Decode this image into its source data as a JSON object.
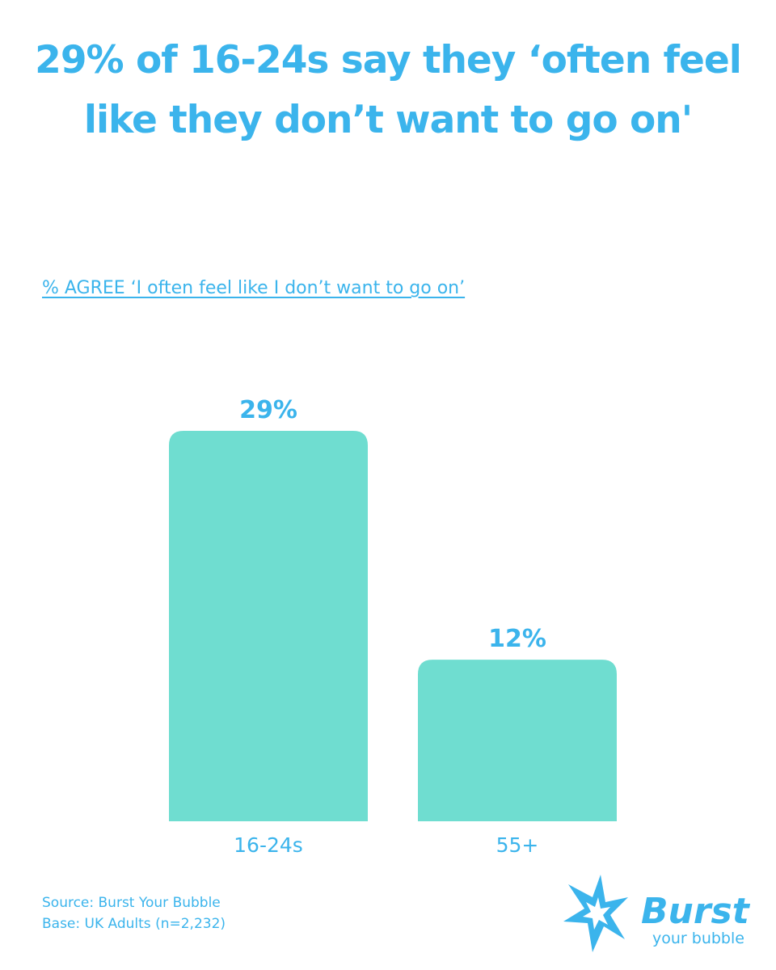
{
  "title": "29% of 16-24s say they ‘often feel like they don’t want to go on'",
  "subtitle": "% AGREE ‘I often feel like I don’t want to go on’",
  "chart_data": {
    "type": "bar",
    "categories": [
      "16-24s",
      "55+"
    ],
    "values": [
      29,
      12
    ],
    "data_labels": [
      "29%",
      "12%"
    ],
    "ylim": [
      0,
      29
    ],
    "grid": false,
    "bar_color": "#6fddd0",
    "text_color": "#3bb4ec"
  },
  "footer": {
    "source": "Source: Burst Your Bubble",
    "base": "Base: UK Adults (n=2,232)"
  },
  "logo": {
    "word1": "Burst",
    "word2": "your bubble",
    "color": "#3bb4ec",
    "icon": "star-burst-icon"
  }
}
